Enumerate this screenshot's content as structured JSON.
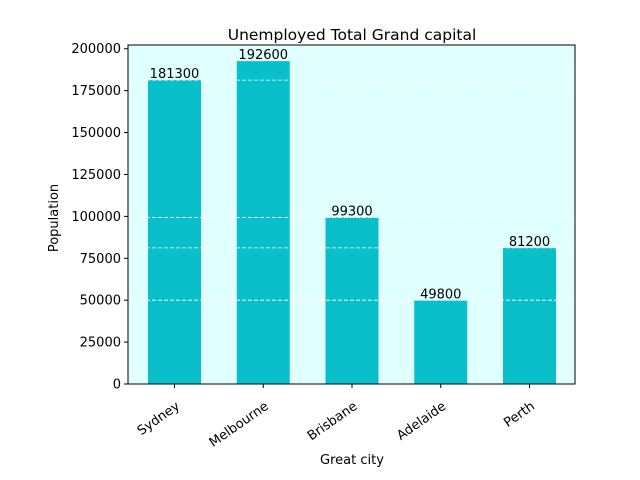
{
  "chart_data": {
    "type": "bar",
    "title": "Unemployed Total Grand capital",
    "xlabel": "Great city",
    "ylabel": "Population",
    "categories": [
      "Sydney",
      "Melbourne",
      "Brisbane",
      "Adelaide",
      "Perth"
    ],
    "values": [
      181300,
      192600,
      99300,
      49800,
      81200
    ],
    "data_labels": [
      "181300",
      "192600",
      "99300",
      "49800",
      "81200"
    ],
    "yticks": [
      0,
      25000,
      50000,
      75000,
      100000,
      125000,
      150000,
      175000,
      200000
    ],
    "ylim": [
      0,
      202230
    ],
    "grid": "dashed horizontal lines, white, drawn at selected levels",
    "x_tick_rotation": "35 degrees",
    "colors": {
      "bar": "#08bfca",
      "plot_background": "#e0ffff",
      "grid": "#ffffff"
    }
  }
}
